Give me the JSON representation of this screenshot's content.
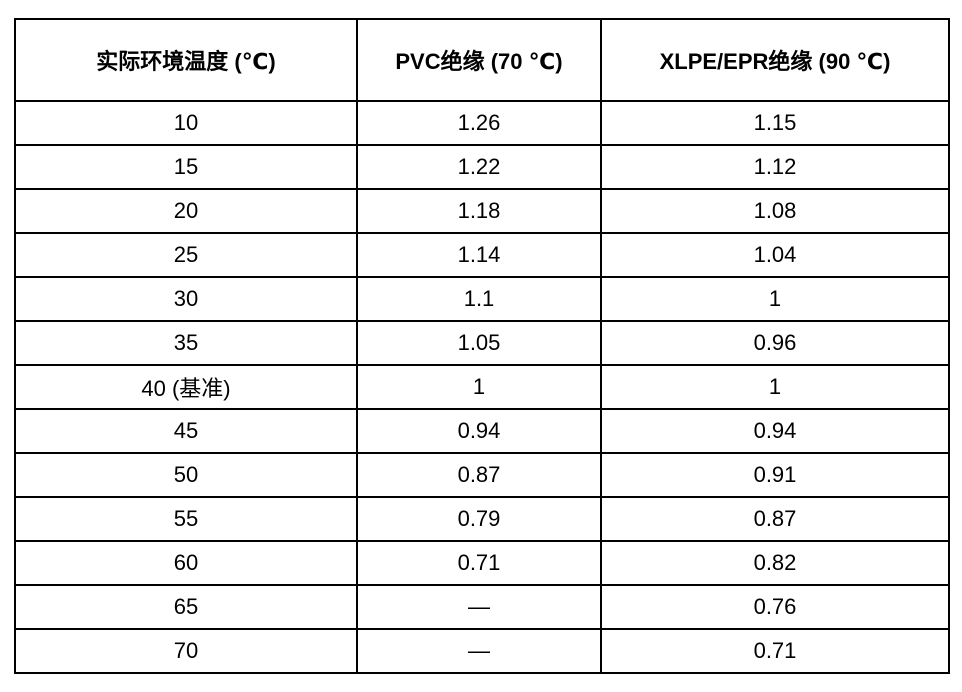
{
  "table": {
    "headers": {
      "temperature": "实际环境温度 (℃)",
      "pvc": "PVC绝缘 (70 ℃)",
      "xlpe": "XLPE/EPR绝缘 (90 ℃)"
    },
    "rows": [
      {
        "temperature": "10",
        "pvc": "1.26",
        "xlpe": "1.15"
      },
      {
        "temperature": "15",
        "pvc": "1.22",
        "xlpe": "1.12"
      },
      {
        "temperature": "20",
        "pvc": "1.18",
        "xlpe": "1.08"
      },
      {
        "temperature": "25",
        "pvc": "1.14",
        "xlpe": "1.04"
      },
      {
        "temperature": "30",
        "pvc": "1.1",
        "xlpe": "1"
      },
      {
        "temperature": "35",
        "pvc": "1.05",
        "xlpe": "0.96"
      },
      {
        "temperature": "40 (基准)",
        "pvc": "1",
        "xlpe": "1"
      },
      {
        "temperature": "45",
        "pvc": "0.94",
        "xlpe": "0.94"
      },
      {
        "temperature": "50",
        "pvc": "0.87",
        "xlpe": "0.91"
      },
      {
        "temperature": "55",
        "pvc": "0.79",
        "xlpe": "0.87"
      },
      {
        "temperature": "60",
        "pvc": "0.71",
        "xlpe": "0.82"
      },
      {
        "temperature": "65",
        "pvc": "—",
        "xlpe": "0.76"
      },
      {
        "temperature": "70",
        "pvc": "—",
        "xlpe": "0.71"
      }
    ],
    "colors": {
      "border": "#000000",
      "text": "#000000",
      "background": "#ffffff"
    }
  }
}
